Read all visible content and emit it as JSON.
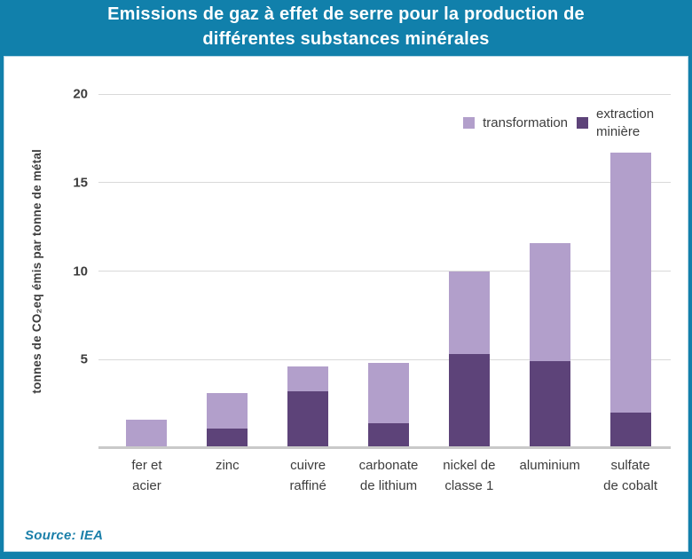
{
  "title": {
    "line1": "Emissions de gaz à effet de serre pour la production de",
    "line2": "différentes substances minérales"
  },
  "source": "Source: IEA",
  "colors": {
    "frame_teal": "#1180ab",
    "transformation": "#b29fcb",
    "extraction": "#5d4379",
    "gridline": "#d9d9d9",
    "baseline": "#c9c9c9",
    "axis_text": "#3d3d3d",
    "source_text": "#1a7fa9",
    "title_text": "#ffffff"
  },
  "chart_data": {
    "type": "bar",
    "stacked": true,
    "grid": true,
    "legend_position": "top-right",
    "title": "Emissions de gaz à effet de serre pour la production de différentes substances minérales",
    "xlabel": "",
    "ylabel": "tonnes de CO₂eq émis par tonne de métal",
    "ylim": [
      0,
      20
    ],
    "yticks": [
      5,
      10,
      15,
      20
    ],
    "categories": [
      "fer et acier",
      "zinc",
      "cuivre raffiné",
      "carbonate de lithium",
      "nickel de classe 1",
      "aluminium",
      "sulfate de cobalt"
    ],
    "category_labels": [
      "fer et\nacier",
      "zinc",
      "cuivre\nraffiné",
      "carbonate\nde lithium",
      "nickel de\nclasse 1",
      "aluminium",
      "sulfate\nde cobalt"
    ],
    "series": [
      {
        "name": "transformation",
        "color": "#b29fcb",
        "values": [
          1.6,
          2.0,
          1.4,
          3.4,
          4.7,
          6.7,
          14.7
        ]
      },
      {
        "name": "extraction minière",
        "color": "#5d4379",
        "values": [
          0,
          1.1,
          3.2,
          1.4,
          5.3,
          4.9,
          2.0
        ]
      }
    ],
    "totals": [
      1.6,
      3.1,
      4.6,
      4.8,
      10.0,
      11.6,
      16.7
    ],
    "legend": [
      {
        "label": "transformation"
      },
      {
        "label": "extraction minière"
      }
    ]
  }
}
